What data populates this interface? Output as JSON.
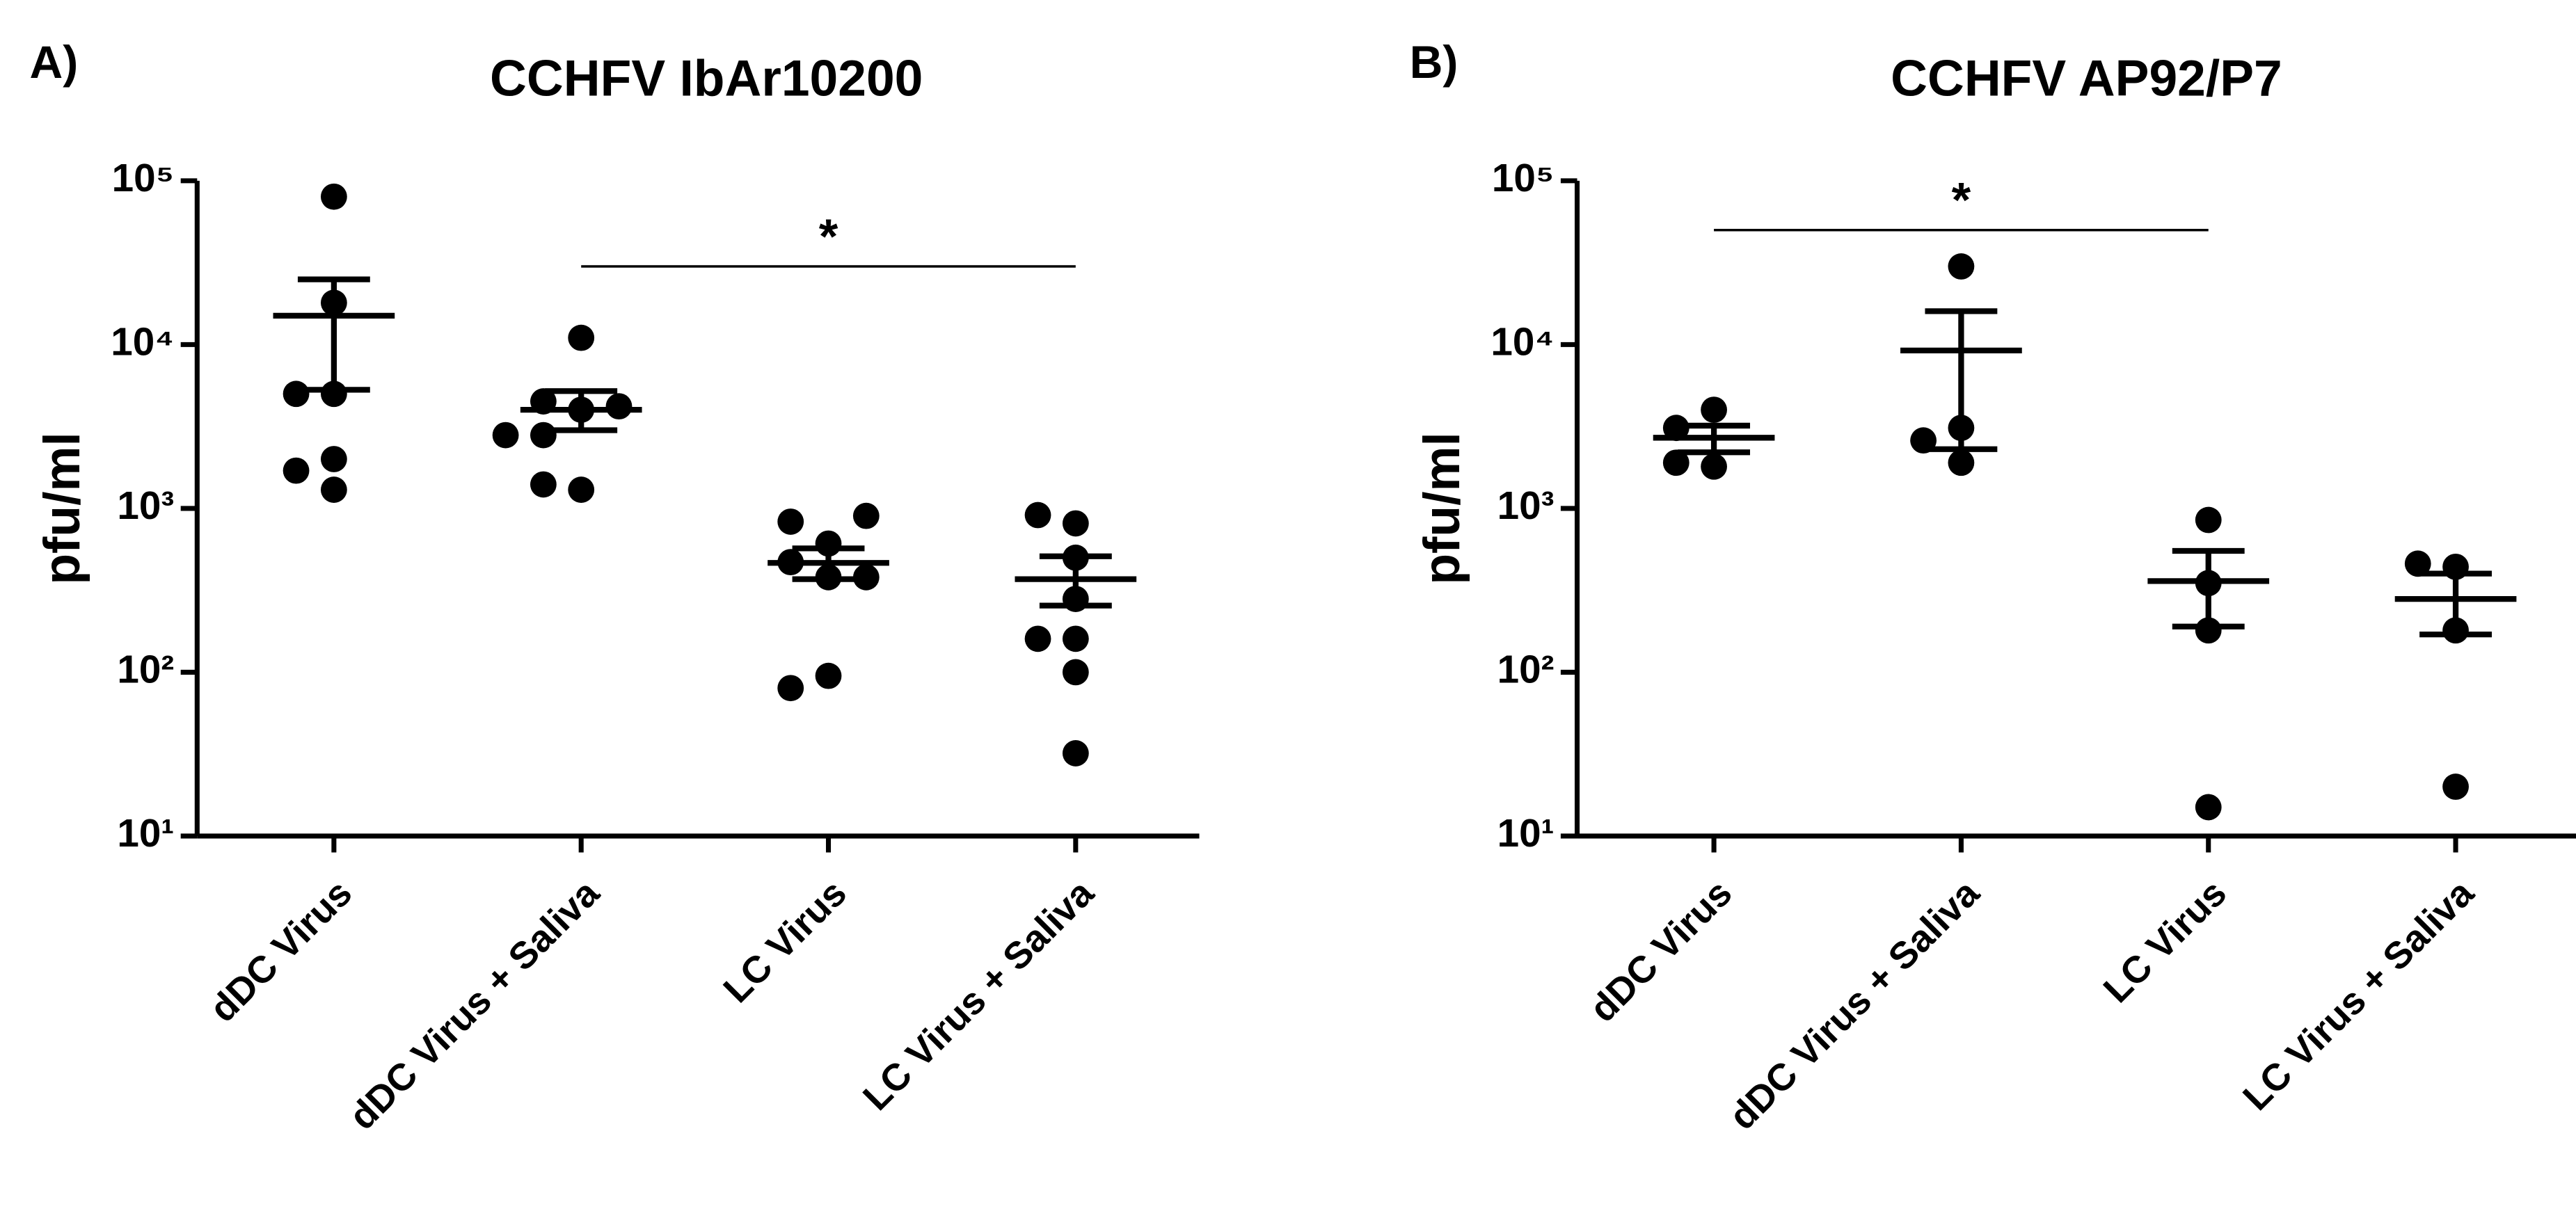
{
  "chart_data": [
    {
      "type": "dot",
      "panel_label": "A)",
      "title": "CCHFV IbAr10200",
      "ylabel": "pfu/ml",
      "categories": [
        "dDC Virus",
        "dDC Virus + Saliva",
        "LC Virus",
        "LC Virus + Saliva"
      ],
      "points": [
        [
          80000,
          18000,
          5000,
          5000,
          2000,
          1700,
          1300
        ],
        [
          11000,
          4000,
          4500,
          4200,
          2800,
          2800,
          1300,
          1400
        ],
        [
          610,
          830,
          900,
          470,
          380,
          380,
          95,
          80
        ],
        [
          810,
          910,
          500,
          280,
          160,
          100,
          160,
          32
        ]
      ],
      "mean": [
        15000,
        4000,
        465,
        370
      ],
      "error_high": [
        25000,
        5200,
        570,
        510
      ],
      "error_low": [
        5300,
        3000,
        370,
        255
      ],
      "ylim": [
        10,
        100000
      ],
      "log_y": true,
      "color": "#000000",
      "yticks": [
        {
          "value": 10,
          "label": "10¹"
        },
        {
          "value": 100,
          "label": "10²"
        },
        {
          "value": 1000,
          "label": "10³"
        },
        {
          "value": 10000,
          "label": "10⁴"
        },
        {
          "value": 100000,
          "label": "10⁵"
        }
      ],
      "significance": [
        {
          "from": 1,
          "to": 3,
          "y": 30000,
          "label": "*"
        }
      ]
    },
    {
      "type": "dot",
      "panel_label": "B)",
      "title": "CCHFV AP92/P7",
      "ylabel": "pfu/ml",
      "categories": [
        "dDC Virus",
        "dDC Virus + Saliva",
        "LC Virus",
        "LC Virus + Saliva"
      ],
      "points": [
        [
          4000,
          3100,
          1800,
          1900
        ],
        [
          30000,
          3100,
          2600,
          1900
        ],
        [
          850,
          350,
          180,
          15
        ],
        [
          440,
          460,
          180,
          20
        ]
      ],
      "mean": [
        2700,
        9200,
        360,
        280
      ],
      "error_high": [
        3200,
        16000,
        550,
        400
      ],
      "error_low": [
        2200,
        2300,
        190,
        170
      ],
      "ylim": [
        10,
        100000
      ],
      "log_y": true,
      "color": "#000000",
      "yticks": [
        {
          "value": 10,
          "label": "10¹"
        },
        {
          "value": 100,
          "label": "10²"
        },
        {
          "value": 1000,
          "label": "10³"
        },
        {
          "value": 10000,
          "label": "10⁴"
        },
        {
          "value": 100000,
          "label": "10⁵"
        }
      ],
      "significance": [
        {
          "from": 0,
          "to": 2,
          "y": 50000,
          "label": "*"
        }
      ]
    }
  ]
}
